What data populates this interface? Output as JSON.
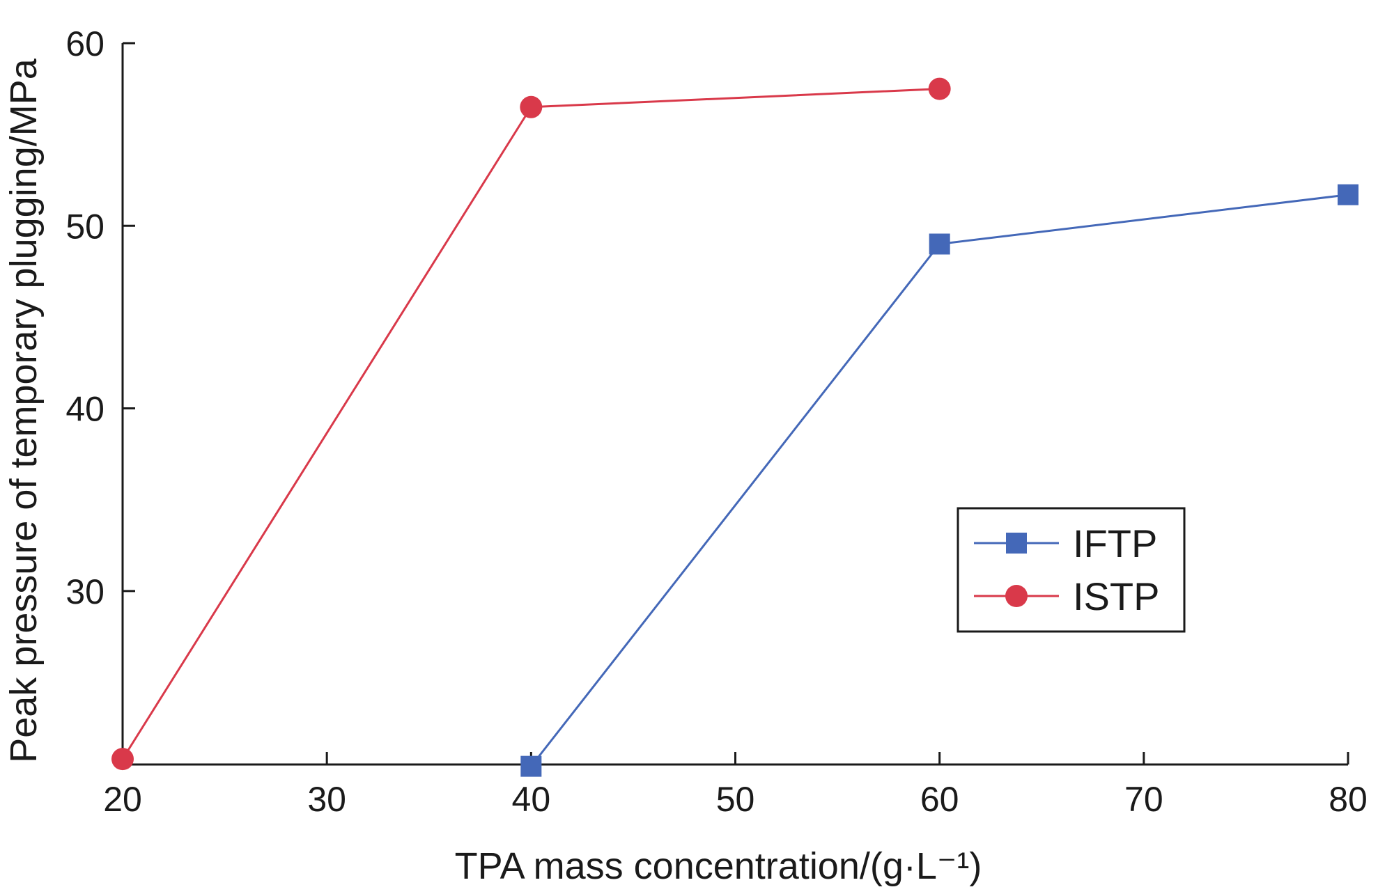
{
  "chart_data": {
    "type": "line",
    "title": "",
    "xlabel": "TPA mass concentration/(g·L⁻¹)",
    "ylabel": "Peak pressure of temporary plugging/MPa",
    "xlim": [
      20,
      80
    ],
    "ylim": [
      20.5,
      60
    ],
    "x_ticks": [
      20,
      30,
      40,
      50,
      60,
      70,
      80
    ],
    "y_ticks": [
      30,
      40,
      50,
      60
    ],
    "grid": false,
    "legend_position": "right",
    "series": [
      {
        "name": "IFTP",
        "color": "#4468b8",
        "marker": "square",
        "points": [
          [
            40,
            20.4
          ],
          [
            60,
            49.0
          ],
          [
            80,
            51.7
          ]
        ]
      },
      {
        "name": "ISTP",
        "color": "#d9394a",
        "marker": "circle",
        "points": [
          [
            20,
            20.8
          ],
          [
            40,
            56.5
          ],
          [
            60,
            57.5
          ]
        ]
      }
    ]
  }
}
